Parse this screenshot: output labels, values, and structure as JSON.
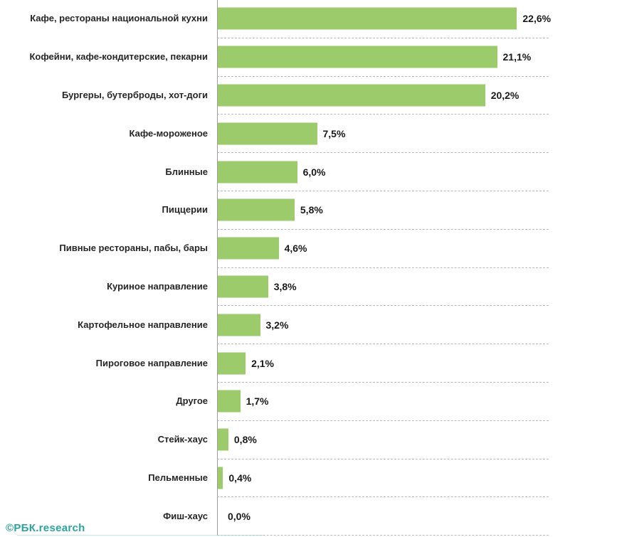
{
  "watermark": {
    "text": "©РБК.research",
    "color": "#2BA59E",
    "underline_color": "#8FD6D2"
  },
  "chart_data": {
    "type": "bar",
    "orientation": "horizontal",
    "title": "",
    "xlabel": "",
    "ylabel": "",
    "xlim": [
      0,
      25
    ],
    "grid": "dashed-horizontal-row-separators",
    "legend": "none",
    "bar_color": "#9BCB6A",
    "axis_color": "#9d9d9d",
    "gridline_color": "#b9b9b9",
    "label_color": "#262626",
    "categories": [
      "Кафе, рестораны национальной кухни",
      "Кофейни, кафе-кондитерские, пекарни",
      "Бургеры, бутерброды, хот-доги",
      "Кафе-мороженое",
      "Блинные",
      "Пиццерии",
      "Пивные рестораны, пабы, бары",
      "Куриное направление",
      "Картофельное направление",
      "Пироговое направление",
      "Другое",
      "Стейк-хаус",
      "Пельменные",
      "Фиш-хаус"
    ],
    "values": [
      22.6,
      21.1,
      20.2,
      7.5,
      6.0,
      5.8,
      4.6,
      3.8,
      3.2,
      2.1,
      1.7,
      0.8,
      0.4,
      0.0
    ],
    "value_labels": [
      "22,6%",
      "21,1%",
      "20,2%",
      "7,5%",
      "6,0%",
      "5,8%",
      "4,6%",
      "3,8%",
      "3,2%",
      "2,1%",
      "1,7%",
      "0,8%",
      "0,4%",
      "0,0%"
    ]
  }
}
